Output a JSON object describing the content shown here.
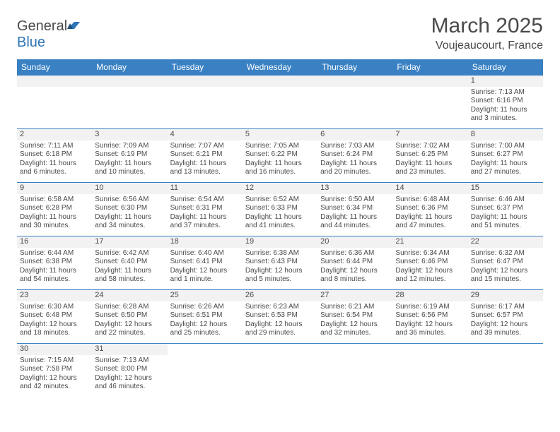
{
  "logo": {
    "part1": "General",
    "part2": "Blue"
  },
  "title": "March 2025",
  "location": "Voujeaucourt, France",
  "weekdays": [
    "Sunday",
    "Monday",
    "Tuesday",
    "Wednesday",
    "Thursday",
    "Friday",
    "Saturday"
  ],
  "colors": {
    "header_bg": "#3a81c3",
    "header_text": "#ffffff",
    "daynum_bg": "#f2f2f2",
    "cell_border": "#3a81c3",
    "body_text": "#4a4a4a",
    "logo_blue": "#2e75b6"
  },
  "first_weekday_index": 6,
  "days": [
    {
      "n": 1,
      "sunrise": "7:13 AM",
      "sunset": "6:16 PM",
      "daylight": "11 hours and 3 minutes."
    },
    {
      "n": 2,
      "sunrise": "7:11 AM",
      "sunset": "6:18 PM",
      "daylight": "11 hours and 6 minutes."
    },
    {
      "n": 3,
      "sunrise": "7:09 AM",
      "sunset": "6:19 PM",
      "daylight": "11 hours and 10 minutes."
    },
    {
      "n": 4,
      "sunrise": "7:07 AM",
      "sunset": "6:21 PM",
      "daylight": "11 hours and 13 minutes."
    },
    {
      "n": 5,
      "sunrise": "7:05 AM",
      "sunset": "6:22 PM",
      "daylight": "11 hours and 16 minutes."
    },
    {
      "n": 6,
      "sunrise": "7:03 AM",
      "sunset": "6:24 PM",
      "daylight": "11 hours and 20 minutes."
    },
    {
      "n": 7,
      "sunrise": "7:02 AM",
      "sunset": "6:25 PM",
      "daylight": "11 hours and 23 minutes."
    },
    {
      "n": 8,
      "sunrise": "7:00 AM",
      "sunset": "6:27 PM",
      "daylight": "11 hours and 27 minutes."
    },
    {
      "n": 9,
      "sunrise": "6:58 AM",
      "sunset": "6:28 PM",
      "daylight": "11 hours and 30 minutes."
    },
    {
      "n": 10,
      "sunrise": "6:56 AM",
      "sunset": "6:30 PM",
      "daylight": "11 hours and 34 minutes."
    },
    {
      "n": 11,
      "sunrise": "6:54 AM",
      "sunset": "6:31 PM",
      "daylight": "11 hours and 37 minutes."
    },
    {
      "n": 12,
      "sunrise": "6:52 AM",
      "sunset": "6:33 PM",
      "daylight": "11 hours and 41 minutes."
    },
    {
      "n": 13,
      "sunrise": "6:50 AM",
      "sunset": "6:34 PM",
      "daylight": "11 hours and 44 minutes."
    },
    {
      "n": 14,
      "sunrise": "6:48 AM",
      "sunset": "6:36 PM",
      "daylight": "11 hours and 47 minutes."
    },
    {
      "n": 15,
      "sunrise": "6:46 AM",
      "sunset": "6:37 PM",
      "daylight": "11 hours and 51 minutes."
    },
    {
      "n": 16,
      "sunrise": "6:44 AM",
      "sunset": "6:38 PM",
      "daylight": "11 hours and 54 minutes."
    },
    {
      "n": 17,
      "sunrise": "6:42 AM",
      "sunset": "6:40 PM",
      "daylight": "11 hours and 58 minutes."
    },
    {
      "n": 18,
      "sunrise": "6:40 AM",
      "sunset": "6:41 PM",
      "daylight": "12 hours and 1 minute."
    },
    {
      "n": 19,
      "sunrise": "6:38 AM",
      "sunset": "6:43 PM",
      "daylight": "12 hours and 5 minutes."
    },
    {
      "n": 20,
      "sunrise": "6:36 AM",
      "sunset": "6:44 PM",
      "daylight": "12 hours and 8 minutes."
    },
    {
      "n": 21,
      "sunrise": "6:34 AM",
      "sunset": "6:46 PM",
      "daylight": "12 hours and 12 minutes."
    },
    {
      "n": 22,
      "sunrise": "6:32 AM",
      "sunset": "6:47 PM",
      "daylight": "12 hours and 15 minutes."
    },
    {
      "n": 23,
      "sunrise": "6:30 AM",
      "sunset": "6:48 PM",
      "daylight": "12 hours and 18 minutes."
    },
    {
      "n": 24,
      "sunrise": "6:28 AM",
      "sunset": "6:50 PM",
      "daylight": "12 hours and 22 minutes."
    },
    {
      "n": 25,
      "sunrise": "6:26 AM",
      "sunset": "6:51 PM",
      "daylight": "12 hours and 25 minutes."
    },
    {
      "n": 26,
      "sunrise": "6:23 AM",
      "sunset": "6:53 PM",
      "daylight": "12 hours and 29 minutes."
    },
    {
      "n": 27,
      "sunrise": "6:21 AM",
      "sunset": "6:54 PM",
      "daylight": "12 hours and 32 minutes."
    },
    {
      "n": 28,
      "sunrise": "6:19 AM",
      "sunset": "6:56 PM",
      "daylight": "12 hours and 36 minutes."
    },
    {
      "n": 29,
      "sunrise": "6:17 AM",
      "sunset": "6:57 PM",
      "daylight": "12 hours and 39 minutes."
    },
    {
      "n": 30,
      "sunrise": "7:15 AM",
      "sunset": "7:58 PM",
      "daylight": "12 hours and 42 minutes."
    },
    {
      "n": 31,
      "sunrise": "7:13 AM",
      "sunset": "8:00 PM",
      "daylight": "12 hours and 46 minutes."
    }
  ],
  "labels": {
    "sunrise": "Sunrise:",
    "sunset": "Sunset:",
    "daylight": "Daylight:"
  }
}
